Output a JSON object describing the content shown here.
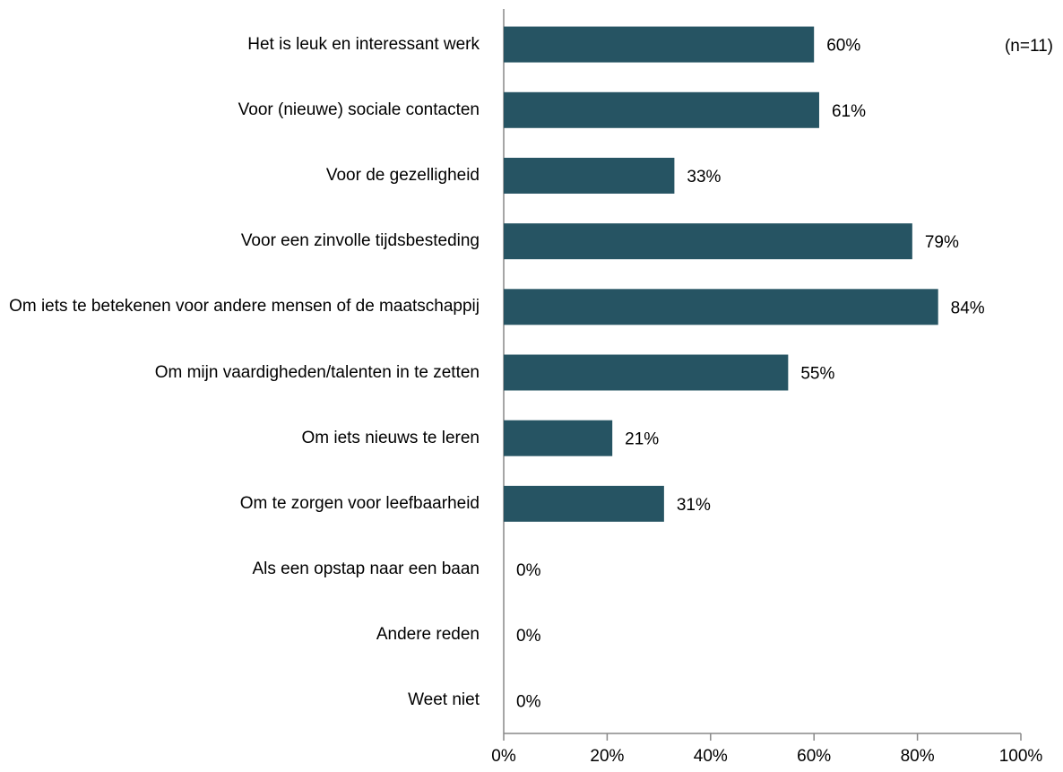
{
  "chart_data": {
    "type": "hbar",
    "annotation": "(n=11)",
    "categories": [
      "Het is leuk en interessant werk",
      "Voor (nieuwe) sociale contacten",
      "Voor de gezelligheid",
      "Voor een zinvolle tijdsbesteding",
      "Om iets te betekenen voor andere mensen of de maatschappij",
      "Om mijn vaardigheden/talenten in te zetten",
      "Om iets nieuws te leren",
      "Om te zorgen voor leefbaarheid",
      "Als een opstap naar een baan",
      "Andere reden",
      "Weet niet"
    ],
    "values": [
      60,
      61,
      33,
      79,
      84,
      55,
      21,
      31,
      0,
      0,
      0
    ],
    "value_labels": [
      "60%",
      "61%",
      "33%",
      "79%",
      "84%",
      "55%",
      "21%",
      "31%",
      "0%",
      "0%",
      "0%"
    ],
    "color": "#265463",
    "xlim": [
      0,
      100
    ],
    "xticks": [
      {
        "value": 0,
        "label": "0%"
      },
      {
        "value": 20,
        "label": "20%"
      },
      {
        "value": 40,
        "label": "40%"
      },
      {
        "value": 60,
        "label": "60%"
      },
      {
        "value": 80,
        "label": "80%"
      },
      {
        "value": 100,
        "label": "100%"
      }
    ]
  }
}
